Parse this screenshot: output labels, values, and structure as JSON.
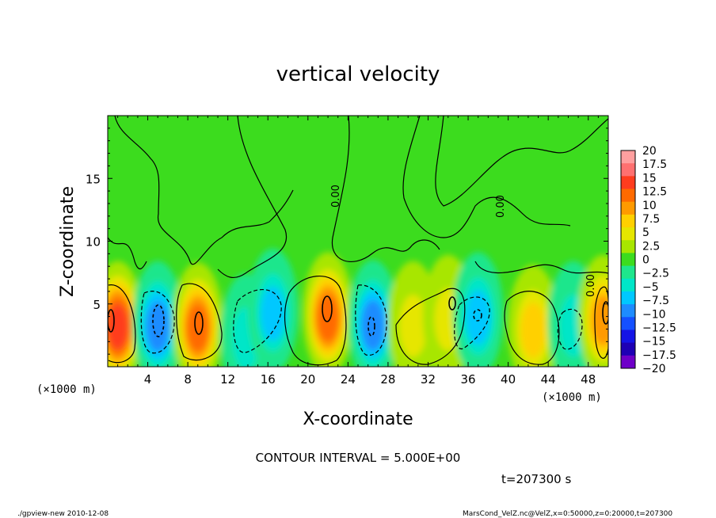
{
  "chart_data": {
    "type": "heatmap",
    "title": "vertical velocity",
    "xlabel": "X-coordinate",
    "ylabel": "Z-coordinate",
    "x_units": "(×1000 m)",
    "y_units": "(×1000 m)",
    "xlim": [
      0,
      50
    ],
    "ylim": [
      0,
      20
    ],
    "x_ticks": [
      "4",
      "8",
      "12",
      "16",
      "20",
      "24",
      "28",
      "32",
      "36",
      "40",
      "44",
      "48"
    ],
    "y_ticks": [
      "5",
      "10",
      "15"
    ],
    "contour_interval_text": "CONTOUR INTERVAL = 5.000E+00",
    "time_text": "t=207300 s",
    "zero_contour_label": "0.00",
    "colorbar": {
      "labels": [
        "20",
        "17.5",
        "15",
        "12.5",
        "10",
        "7.5",
        "5",
        "2.5",
        "0",
        "−2.5",
        "−5",
        "−7.5",
        "−10",
        "−12.5",
        "−15",
        "−17.5",
        "−20"
      ],
      "colors": [
        "#ff9f9f",
        "#ff7070",
        "#ff3c1e",
        "#ff6a00",
        "#ff9a00",
        "#ffd000",
        "#e6e600",
        "#a8e600",
        "#3cdc1e",
        "#1ee68c",
        "#00e6c8",
        "#00c8ff",
        "#1e8cff",
        "#1450ff",
        "#1414e6",
        "#1e00b4",
        "#6e00c8"
      ]
    },
    "cells": [
      {
        "x": 1,
        "z": 3.5,
        "w": 14
      },
      {
        "x": 5,
        "z": 3.5,
        "w": -11
      },
      {
        "x": 9,
        "z": 3.4,
        "w": 12
      },
      {
        "x": 13.8,
        "z": 2.5,
        "w": -6
      },
      {
        "x": 16.5,
        "z": 4.5,
        "w": -7
      },
      {
        "x": 22,
        "z": 4.2,
        "w": 13
      },
      {
        "x": 26.5,
        "z": 3.6,
        "w": -9
      },
      {
        "x": 30.5,
        "z": 3.5,
        "w": 5
      },
      {
        "x": 34,
        "z": 4,
        "w": 6
      },
      {
        "x": 37,
        "z": 4.2,
        "w": -8
      },
      {
        "x": 42.5,
        "z": 3.2,
        "w": 8
      },
      {
        "x": 46.5,
        "z": 3.5,
        "w": -6
      },
      {
        "x": 49.5,
        "z": 4,
        "w": 10
      }
    ]
  },
  "footer": {
    "left": "./gpview-new  2010-12-08",
    "right": "MarsCond_VelZ.nc@VelZ,x=0:50000,z=0:20000,t=207300"
  }
}
